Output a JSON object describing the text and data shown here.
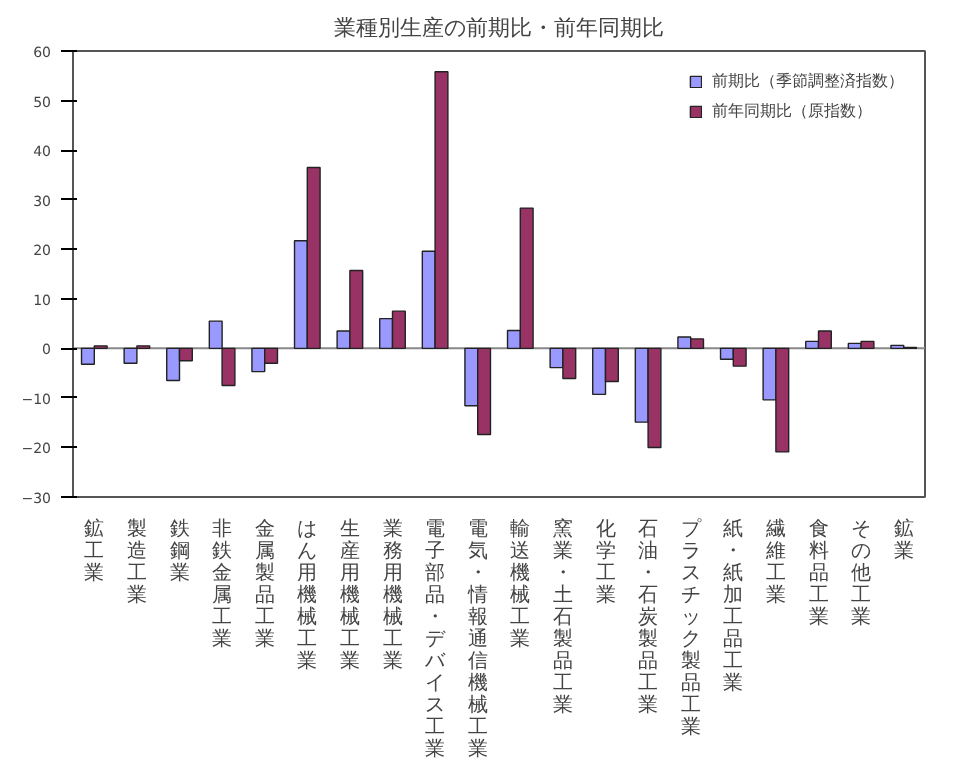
{
  "chart_data": {
    "type": "bar",
    "title": "業種別生産の前期比・前年同期比",
    "categories": [
      "鉱工業",
      "製造工業",
      "鉄鋼業",
      "非鉄金属工業",
      "金属製品工業",
      "はん用機械工業",
      "生産用機械工業",
      "業務用機械工業",
      "電子部品・デバイス工業",
      "電気・情報通信機械工業",
      "輸送機械工業",
      "窯業・土石製品工業",
      "化学工業",
      "石油・石炭製品工業",
      "プラスチック製品工業",
      "紙・紙加工品工業",
      "繊維工業",
      "食料品工業",
      "その他工業",
      "鉱業"
    ],
    "series": [
      {
        "name": "前期比（季節調整済指数）",
        "color": "#9999ff",
        "values": [
          -3.2,
          -3.0,
          -6.5,
          5.5,
          -4.7,
          21.7,
          3.5,
          6.0,
          19.6,
          -11.6,
          3.6,
          -3.9,
          -9.3,
          -14.9,
          2.3,
          -2.2,
          -10.4,
          1.4,
          1.0,
          0.6
        ]
      },
      {
        "name": "前年同期比（原指数）",
        "color": "#993366",
        "values": [
          0.5,
          0.5,
          -2.5,
          -7.5,
          -3.0,
          36.5,
          15.7,
          7.5,
          55.8,
          -17.4,
          28.3,
          -6.1,
          -6.7,
          -20.0,
          1.9,
          -3.6,
          -20.9,
          3.5,
          1.4,
          0.2
        ]
      }
    ],
    "ylim": [
      -30,
      60
    ],
    "yticks": [
      -30,
      -20,
      -10,
      0,
      10,
      20,
      30,
      40,
      50,
      60
    ],
    "legend": "top right"
  }
}
